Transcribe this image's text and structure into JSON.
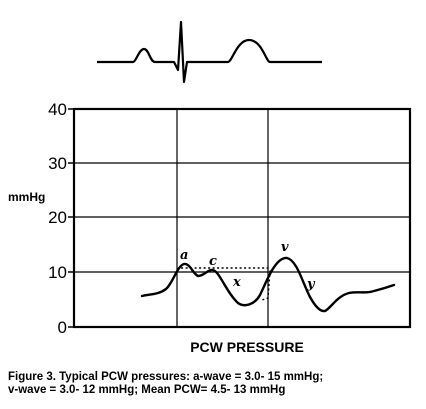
{
  "ecg": {
    "label": ""
  },
  "chart": {
    "ylabel": "mmHg",
    "xlabel": "PCW PRESSURE",
    "yticks": [
      "40",
      "30",
      "20",
      "10",
      "0"
    ],
    "wave_labels": {
      "a": "a",
      "c": "c",
      "x": "x",
      "v": "v",
      "y": "y"
    }
  },
  "chart_data": {
    "type": "line",
    "title": "",
    "xlabel": "PCW PRESSURE",
    "ylabel": "mmHg",
    "ylim": [
      0,
      40
    ],
    "yticks": [
      0,
      10,
      20,
      30,
      40
    ],
    "grid": true,
    "series": [
      {
        "name": "",
        "x": [
          0,
          2,
          3,
          4,
          5,
          6,
          7,
          8,
          9,
          10,
          11,
          12,
          13,
          14,
          15,
          16
        ],
        "values": [
          6,
          9,
          12,
          9,
          11,
          8,
          5,
          7,
          12.5,
          7,
          3,
          5,
          6,
          6.5,
          7,
          7.5
        ]
      }
    ],
    "annotations": [
      "a",
      "c",
      "x",
      "v",
      "y"
    ]
  },
  "caption": {
    "line1": "Figure 3. Typical PCW pressures: a-wave = 3.0- 15 mmHg;",
    "line2": "v-wave = 3.0- 12 mmHg; Mean PCW= 4.5- 13 mmHg"
  }
}
